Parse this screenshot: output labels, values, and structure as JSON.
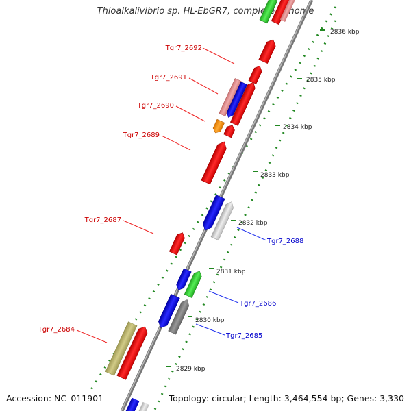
{
  "title": "Thioalkalivibrio sp. HL-EbGR7, complete genome",
  "footer": {
    "accession": "Accession: NC_011901",
    "summary": "Topology: circular; Length: 3,464,554 bp; Genes: 3,330"
  },
  "ticks": [
    "2836 kbp",
    "2835 kbp",
    "2834 kbp",
    "2833 kbp",
    "2832 kbp",
    "2831 kbp",
    "2830 kbp",
    "2829 kbp"
  ],
  "gene_labels": {
    "Tgr7_2692": "Tgr7_2692",
    "Tgr7_2691": "Tgr7_2691",
    "Tgr7_2690": "Tgr7_2690",
    "Tgr7_2689": "Tgr7_2689",
    "Tgr7_2687": "Tgr7_2687",
    "Tgr7_2684": "Tgr7_2684",
    "Tgr7_2688": "Tgr7_2688",
    "Tgr7_2686": "Tgr7_2686",
    "Tgr7_2685": "Tgr7_2685"
  },
  "colors": {
    "label_red": "#cc0000",
    "label_blue": "#0000cc",
    "tick_green": "#228822",
    "backbone": "#777777"
  }
}
